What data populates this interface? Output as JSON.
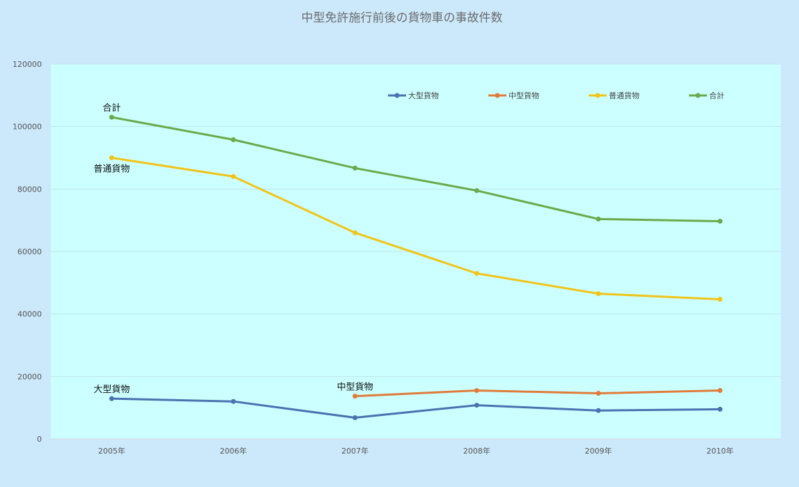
{
  "chart_data": {
    "type": "line",
    "title": "中型免許施行前後の貨物車の事故件数",
    "categories": [
      "2005年",
      "2006年",
      "2007年",
      "2008年",
      "2009年",
      "2010年"
    ],
    "ylim": [
      0,
      120000
    ],
    "yticks": [
      0,
      20000,
      40000,
      60000,
      80000,
      100000,
      120000
    ],
    "ytick_labels": [
      "0",
      "20000",
      "40000",
      "60000",
      "80000",
      "100000",
      "120000"
    ],
    "grid": true,
    "legend_position": "top-right",
    "series": [
      {
        "name": "大型貨物",
        "color": "#4a72b0",
        "values": [
          12900,
          12000,
          6800,
          10800,
          9100,
          9500
        ]
      },
      {
        "name": "中型貨物",
        "color": "#e07b39",
        "values": [
          null,
          null,
          13700,
          15500,
          14600,
          15500
        ]
      },
      {
        "name": "普通貨物",
        "color": "#f0c419",
        "values": [
          90000,
          84000,
          66000,
          53000,
          46500,
          44700
        ]
      },
      {
        "name": "合計",
        "color": "#6aaa4a",
        "values": [
          103000,
          95800,
          86700,
          79500,
          70400,
          69700
        ]
      }
    ],
    "annotations": [
      {
        "text": "合計",
        "series": 3,
        "index": 0,
        "pos": "above"
      },
      {
        "text": "普通貨物",
        "series": 2,
        "index": 0,
        "pos": "below"
      },
      {
        "text": "大型貨物",
        "series": 0,
        "index": 0,
        "pos": "above"
      },
      {
        "text": "中型貨物",
        "series": 1,
        "index": 2,
        "pos": "above"
      }
    ],
    "colors": {
      "page_background": "#cce9fb",
      "plot_background": "#ccffff",
      "gridline": "#bfe4ee",
      "axis_text": "#555555",
      "title_text": "#6b6b6b"
    }
  }
}
